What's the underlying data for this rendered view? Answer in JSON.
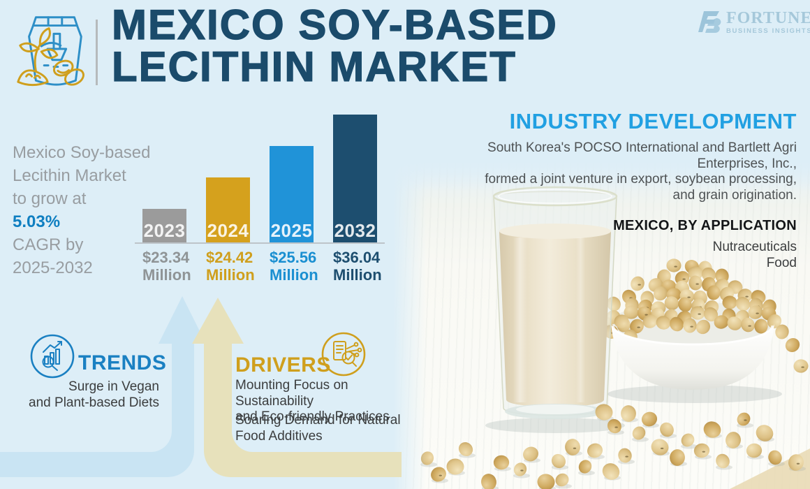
{
  "page": {
    "title_line1": "MEXICO SOY-BASED",
    "title_line2": "LECITHIN MARKET"
  },
  "brand": {
    "name": "FORTUNE",
    "tagline": "BUSINESS INSIGHTS"
  },
  "growth_note": {
    "lines_before": [
      "Mexico Soy-based",
      "Lecithin Market",
      "to grow at"
    ],
    "highlight": "5.03%",
    "lines_after": [
      "CAGR by",
      "2025-2032"
    ]
  },
  "chart_data": {
    "type": "bar",
    "categories": [
      "2023",
      "2024",
      "2025",
      "2032"
    ],
    "values": [
      23.34,
      24.42,
      25.56,
      36.04
    ],
    "unit": "USD Million",
    "value_labels": [
      [
        "$23.34",
        "Million"
      ],
      [
        "$24.42",
        "Million"
      ],
      [
        "$25.56",
        "Million"
      ],
      [
        "$36.04",
        "Million"
      ]
    ],
    "bar_colors": [
      "#9b9b9b",
      "#d5a11d",
      "#2093d8",
      "#1d4e6f"
    ],
    "label_colors": [
      "#8f9496",
      "#cf9f1d",
      "#1a8fd1",
      "#1d4e6f"
    ],
    "xlabel": "",
    "ylabel": "",
    "legend": false,
    "grid": false,
    "baseline": true
  },
  "industry_development": {
    "heading": "INDUSTRY DEVELOPMENT",
    "lines": [
      "South Korea's POCSO International and Bartlett Agri Enterprises, Inc.,",
      "formed a joint venture in export, soybean processing,",
      "and grain origination."
    ]
  },
  "application": {
    "heading": "MEXICO, BY APPLICATION",
    "items": [
      "Nutraceuticals",
      "Food"
    ]
  },
  "trends": {
    "heading": "TRENDS",
    "lines": [
      "Surge in Vegan",
      "and Plant-based Diets"
    ]
  },
  "drivers": {
    "heading": "DRIVERS",
    "items": [
      [
        "Mounting Focus on Sustainability",
        "and Eco-friendly Practices"
      ],
      [
        "Soaring Demand for Natural",
        "Food Additives"
      ]
    ]
  },
  "colors": {
    "background": "#ddeef7",
    "title_navy": "#1b4b6b",
    "heading_blue": "#21a0e2",
    "trends_blue": "#1a80c2",
    "gold": "#cf9f1d",
    "highlight_blue": "#0f7fc1",
    "arrow_blue": "#c9e4f3",
    "arrow_tan": "#e7e1bb"
  }
}
